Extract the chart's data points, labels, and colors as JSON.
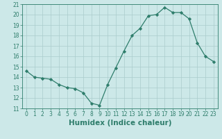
{
  "title": "",
  "xlabel": "Humidex (Indice chaleur)",
  "ylabel": "",
  "x": [
    0,
    1,
    2,
    3,
    4,
    5,
    6,
    7,
    8,
    9,
    10,
    11,
    12,
    13,
    14,
    15,
    16,
    17,
    18,
    19,
    20,
    21,
    22,
    23
  ],
  "y": [
    14.6,
    14.0,
    13.9,
    13.8,
    13.3,
    13.0,
    12.9,
    12.5,
    11.5,
    11.3,
    13.3,
    14.9,
    16.5,
    18.0,
    18.7,
    19.9,
    20.0,
    20.7,
    20.2,
    20.2,
    19.6,
    17.3,
    16.0,
    15.5
  ],
  "ylim": [
    11,
    21
  ],
  "xlim_min": -0.5,
  "xlim_max": 23.5,
  "yticks": [
    11,
    12,
    13,
    14,
    15,
    16,
    17,
    18,
    19,
    20,
    21
  ],
  "xticks": [
    0,
    1,
    2,
    3,
    4,
    5,
    6,
    7,
    8,
    9,
    10,
    11,
    12,
    13,
    14,
    15,
    16,
    17,
    18,
    19,
    20,
    21,
    22,
    23
  ],
  "line_color": "#2e7d6b",
  "marker": "D",
  "marker_size": 2.2,
  "bg_color": "#cce8e8",
  "grid_color": "#aacccc",
  "font_color": "#2e7d6b",
  "xlabel_fontsize": 7.5,
  "tick_fontsize": 5.5
}
